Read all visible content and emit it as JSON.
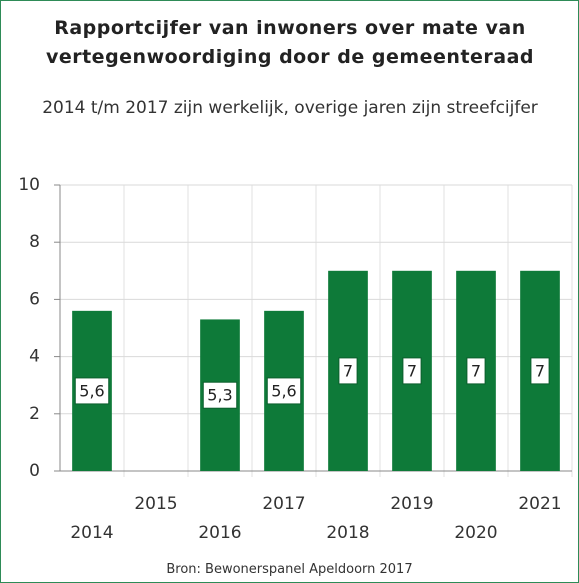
{
  "chart_data": {
    "type": "bar",
    "title": "Rapportcijfer van inwoners over mate van vertegenwoordiging door de gemeenteraad",
    "subtitle": "2014 t/m 2017 zijn werkelijk, overige jaren zijn streefcijfer",
    "source": "Bron: Bewonerspanel Apeldoorn 2017",
    "categories": [
      "2014",
      "2015",
      "2016",
      "2017",
      "2018",
      "2019",
      "2020",
      "2021"
    ],
    "values": [
      5.6,
      null,
      5.3,
      5.6,
      7,
      7,
      7,
      7
    ],
    "value_labels": [
      "5,6",
      null,
      "5,3",
      "5,6",
      "7",
      "7",
      "7",
      "7"
    ],
    "color": "#0e7a39",
    "ylim": [
      0,
      10
    ],
    "yticks": [
      0,
      2,
      4,
      6,
      8,
      10
    ],
    "grid": true
  }
}
